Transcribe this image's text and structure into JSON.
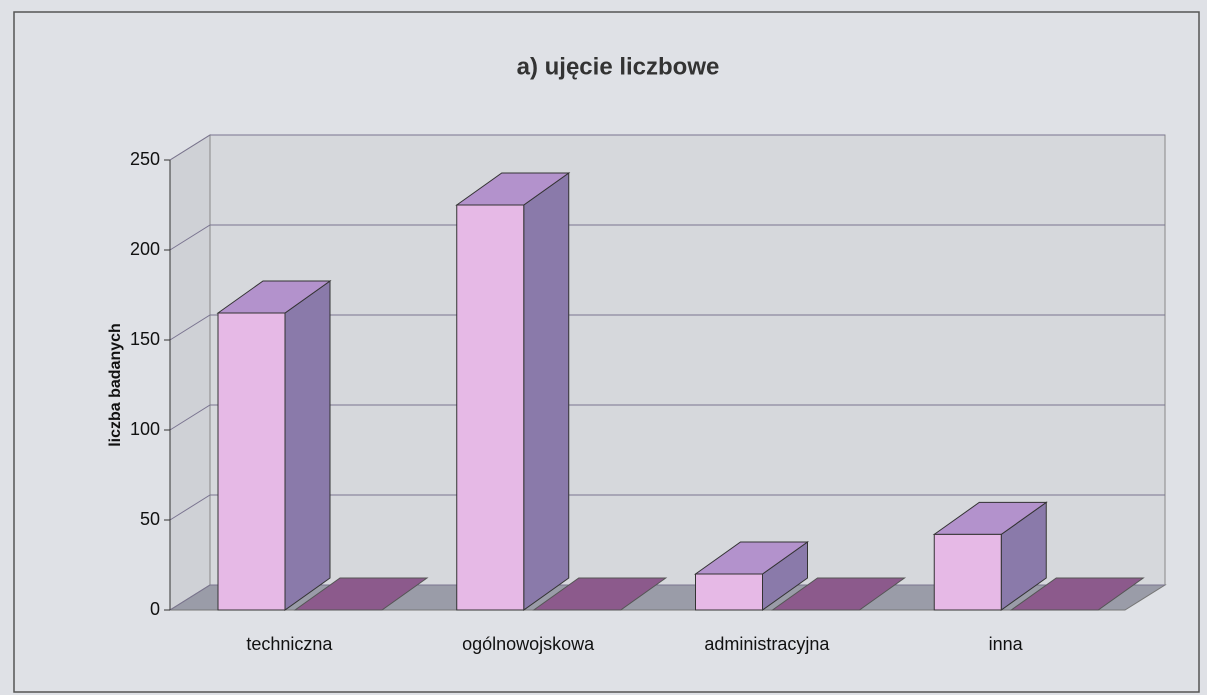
{
  "chart_data": {
    "type": "bar3d",
    "title": "a) ujęcie liczbowe",
    "y_label": "liczba badanych",
    "categories": [
      "techniczna",
      "ogólnowojskowa",
      "administracyjna",
      "inna"
    ],
    "values": [
      165,
      225,
      20,
      42
    ],
    "color": "#e6b9e6",
    "ylim": [
      0,
      250
    ],
    "yticks": [
      0,
      50,
      100,
      150,
      200,
      250
    ],
    "grid": true
  }
}
